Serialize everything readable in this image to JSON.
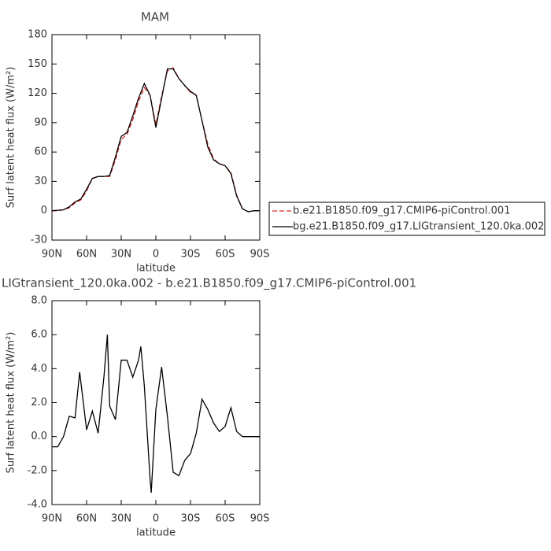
{
  "chart_data": [
    {
      "type": "line",
      "title": "MAM",
      "xlabel": "latitude",
      "ylabel": "Surf latent heat flux (W/m²)",
      "x": [
        90,
        85,
        80,
        75,
        70,
        65,
        60,
        55,
        50,
        45,
        40,
        35,
        30,
        25,
        20,
        15,
        10,
        5,
        0,
        -5,
        -10,
        -15,
        -20,
        -25,
        -30,
        -35,
        -40,
        -45,
        -50,
        -55,
        -60,
        -65,
        -70,
        -75,
        -80,
        -85,
        -90
      ],
      "xlim": [
        90,
        -90
      ],
      "xticks": [
        {
          "value": 90,
          "label": "90N"
        },
        {
          "value": 60,
          "label": "60N"
        },
        {
          "value": 30,
          "label": "30N"
        },
        0,
        {
          "value": -30,
          "label": "30S"
        },
        {
          "value": -60,
          "label": "60S"
        },
        {
          "value": -90,
          "label": "90S"
        }
      ],
      "ylim": [
        -30,
        180
      ],
      "yticks": [
        -30,
        0,
        30,
        60,
        90,
        120,
        150,
        180
      ],
      "legend": "right",
      "series": [
        {
          "name": "b.e21.B1850.f09_g17.CMIP6-piControl.001",
          "color": "#d62728",
          "linestyle": "dashed",
          "values": [
            0,
            0,
            1,
            3,
            8,
            11,
            20,
            33,
            35,
            35,
            35,
            52,
            73,
            78,
            93,
            112,
            126,
            118,
            88,
            117,
            143,
            146,
            135,
            128,
            121,
            118,
            92,
            68,
            53,
            48,
            46,
            39,
            16,
            2,
            -1,
            0,
            0
          ]
        },
        {
          "name": "bg.e21.B1850.f09_g17.LIGtransient_120.0ka.002",
          "color": "#000000",
          "linestyle": "solid",
          "values": [
            0,
            0.5,
            1,
            4,
            9,
            12,
            22,
            33,
            35,
            35,
            36,
            55,
            76,
            80,
            97,
            115,
            130,
            118,
            85,
            115,
            145,
            145,
            135,
            128,
            122,
            118,
            92,
            65,
            52,
            48,
            46,
            38,
            15,
            2,
            -1,
            0,
            0
          ]
        }
      ]
    },
    {
      "type": "line",
      "title": "LIGtransient_120.0ka.002 - b.e21.B1850.f09_g17.CMIP6-piControl.001",
      "xlabel": "latitude",
      "ylabel": "Surf latent heat flux (W/m²)",
      "x": [
        90,
        85,
        80,
        75,
        70,
        66,
        60,
        55,
        50,
        45,
        42,
        40,
        35,
        30,
        25,
        20,
        15,
        13,
        10,
        5,
        4,
        0,
        -5,
        -10,
        -15,
        -20,
        -25,
        -30,
        -35,
        -40,
        -45,
        -50,
        -55,
        -60,
        -65,
        -70,
        -75,
        -80,
        -85,
        -90
      ],
      "xlim": [
        90,
        -90
      ],
      "xticks": [
        {
          "value": 90,
          "label": "90N"
        },
        {
          "value": 60,
          "label": "60N"
        },
        {
          "value": 30,
          "label": "30N"
        },
        0,
        {
          "value": -30,
          "label": "30S"
        },
        {
          "value": -60,
          "label": "60S"
        },
        {
          "value": -90,
          "label": "90S"
        }
      ],
      "ylim": [
        -4,
        8
      ],
      "yticks": [
        {
          "value": -4,
          "label": "-4.0"
        },
        {
          "value": -2,
          "label": "-2.0"
        },
        {
          "value": 0,
          "label": "0.0"
        },
        {
          "value": 2,
          "label": "2.0"
        },
        {
          "value": 4,
          "label": "4.0"
        },
        {
          "value": 6,
          "label": "6.0"
        },
        {
          "value": 8,
          "label": "8.0"
        }
      ],
      "series": [
        {
          "color": "#000000",
          "linestyle": "solid",
          "values": [
            -0.6,
            -0.6,
            0.0,
            1.2,
            1.1,
            3.8,
            0.4,
            1.5,
            0.2,
            3.5,
            6.0,
            1.8,
            1.0,
            4.5,
            4.5,
            3.5,
            4.5,
            5.3,
            3.0,
            -2.5,
            -3.3,
            1.6,
            4.1,
            1.2,
            -2.1,
            -2.3,
            -1.4,
            -1.0,
            0.2,
            2.2,
            1.6,
            0.8,
            0.3,
            0.6,
            1.7,
            0.3,
            0.0,
            0.0,
            0.0,
            0.0
          ]
        }
      ]
    }
  ]
}
